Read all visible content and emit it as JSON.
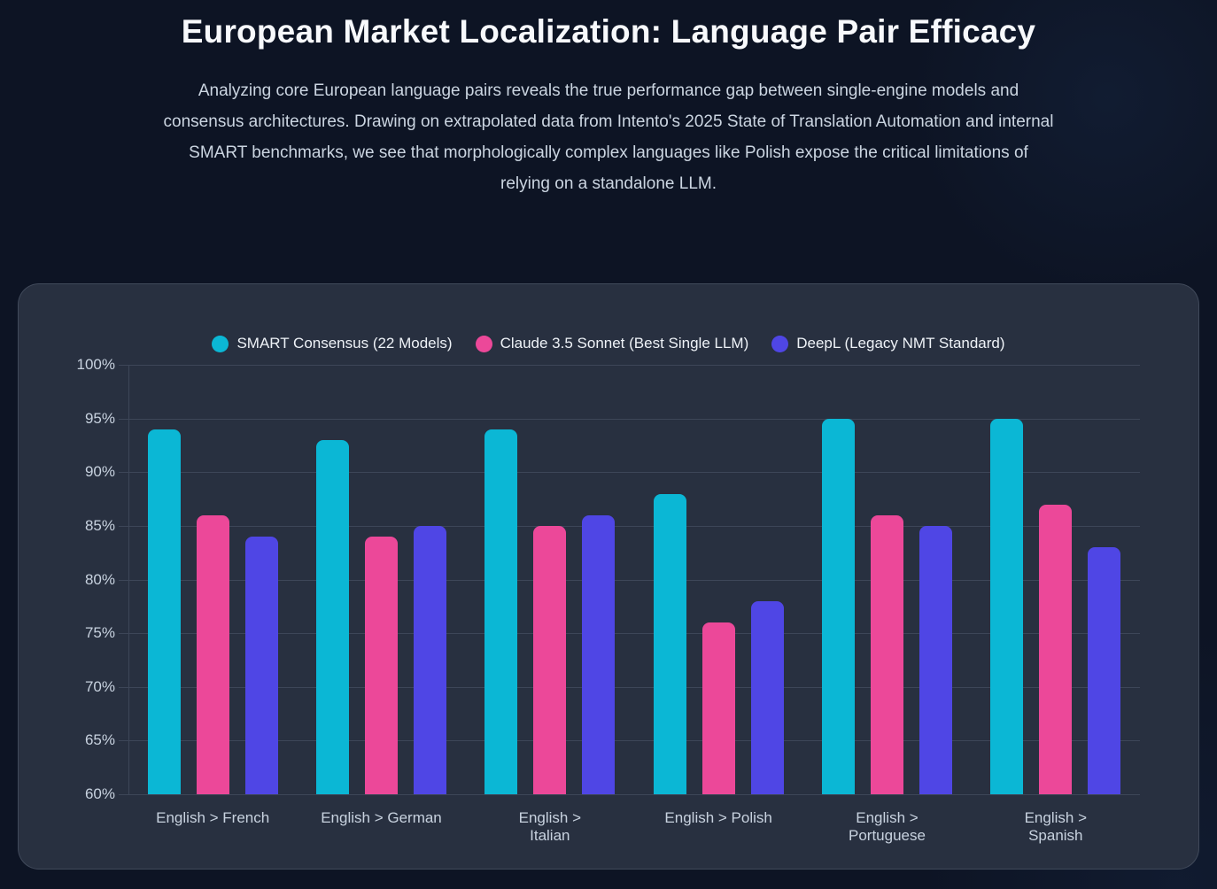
{
  "page": {
    "title": "European Market Localization: Language Pair Efficacy",
    "description": "Analyzing core European language pairs reveals the true performance gap between single-engine models and consensus architectures. Drawing on extrapolated data from Intento's 2025 State of Translation Automation and internal SMART benchmarks, we see that morphologically complex languages like Polish expose the critical limitations of relying on a standalone LLM."
  },
  "theme": {
    "page_bg": "#0d1424",
    "card_bg": "#283040",
    "grid": "#3d4658",
    "axis_text": "#c8d2df",
    "body_text": "#cbd5e1",
    "title_text": "#f7f9fc"
  },
  "chart_data": {
    "type": "bar",
    "title": "European Market Localization: Language Pair Efficacy",
    "categories": [
      "English > French",
      "English > German",
      "English >\nItalian",
      "English > Polish",
      "English >\nPortuguese",
      "English >\nSpanish"
    ],
    "series": [
      {
        "name": "SMART Consensus (22 Models)",
        "color": "#0bb7d5",
        "values": [
          94,
          93,
          94,
          88,
          95,
          95
        ]
      },
      {
        "name": "Claude 3.5 Sonnet (Best Single LLM)",
        "color": "#ec4899",
        "values": [
          86,
          84,
          85,
          76,
          86,
          87
        ]
      },
      {
        "name": "DeepL (Legacy NMT Standard)",
        "color": "#4f46e5",
        "values": [
          84,
          85,
          86,
          78,
          85,
          83
        ]
      }
    ],
    "xlabel": "",
    "ylabel": "",
    "ylim": [
      60,
      100
    ],
    "yticks": [
      60,
      65,
      70,
      75,
      80,
      85,
      90,
      95,
      100
    ],
    "ytick_suffix": "%",
    "grid": true,
    "legend_position": "top"
  }
}
